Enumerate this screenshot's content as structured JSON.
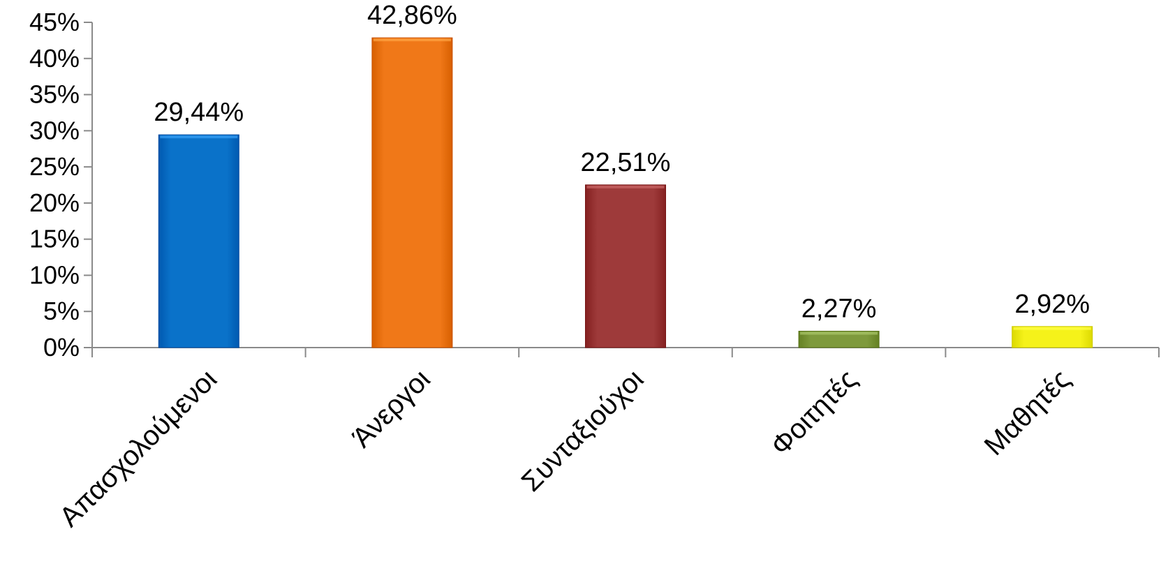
{
  "chart_data": {
    "type": "bar",
    "title": "",
    "xlabel": "",
    "ylabel": "",
    "categories": [
      "Απασχολούμενοι",
      "Άνεργοι",
      "Συνταξιούχοι",
      "Φοιτητές",
      "Μαθητές"
    ],
    "values": [
      29.44,
      42.86,
      22.51,
      2.27,
      2.92
    ],
    "data_labels": [
      "29,44%",
      "42,86%",
      "22,51%",
      "2,27%",
      "2,92%"
    ],
    "colors": [
      "#0A72C9",
      "#F07818",
      "#9E3A3A",
      "#7E9A3C",
      "#F5F21A"
    ],
    "ylim": [
      0,
      45
    ],
    "y_ticks": [
      0,
      5,
      10,
      15,
      20,
      25,
      30,
      35,
      40,
      45
    ],
    "y_tick_labels": [
      "0%",
      "5%",
      "10%",
      "15%",
      "20%",
      "25%",
      "30%",
      "35%",
      "40%",
      "45%"
    ],
    "grid": false,
    "legend": "none"
  }
}
